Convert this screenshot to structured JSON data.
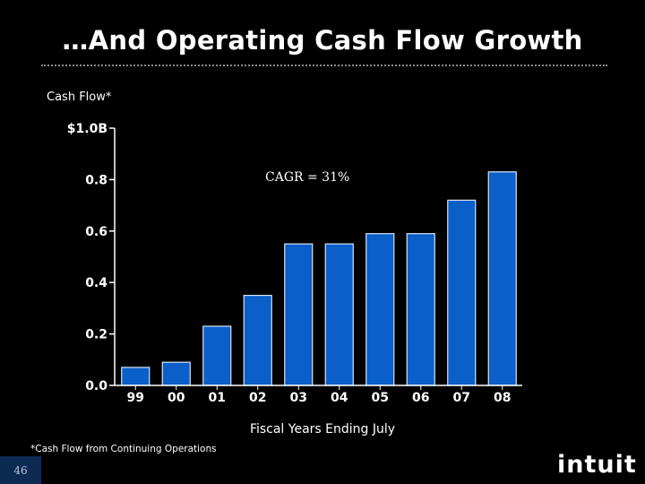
{
  "slide": {
    "title": "…And Operating Cash Flow Growth",
    "page_number": "46",
    "footnote": "*Cash Flow from Continuing Operations",
    "logo_text": "intuit"
  },
  "colors": {
    "bar": "#0a5fc8",
    "bar_edge": "#d8e4f5",
    "axis": "#ffffff",
    "background": "#000000"
  },
  "chart_data": {
    "type": "bar",
    "title": "Cash Flow*",
    "xlabel": "Fiscal Years Ending July",
    "ylabel": "Cash Flow*",
    "categories": [
      "99",
      "00",
      "01",
      "02",
      "03",
      "04",
      "05",
      "06",
      "07",
      "08"
    ],
    "values": [
      0.07,
      0.09,
      0.23,
      0.35,
      0.55,
      0.55,
      0.59,
      0.59,
      0.72,
      0.83
    ],
    "ylim": [
      0,
      1.0
    ],
    "yticks": [
      0.0,
      0.2,
      0.4,
      0.6,
      0.8,
      1.0
    ],
    "ytick_labels": [
      "0.0",
      "0.2",
      "0.4",
      "0.6",
      "0.8",
      "$1.0B"
    ],
    "annotation": "CAGR = 31%",
    "grid": false
  }
}
